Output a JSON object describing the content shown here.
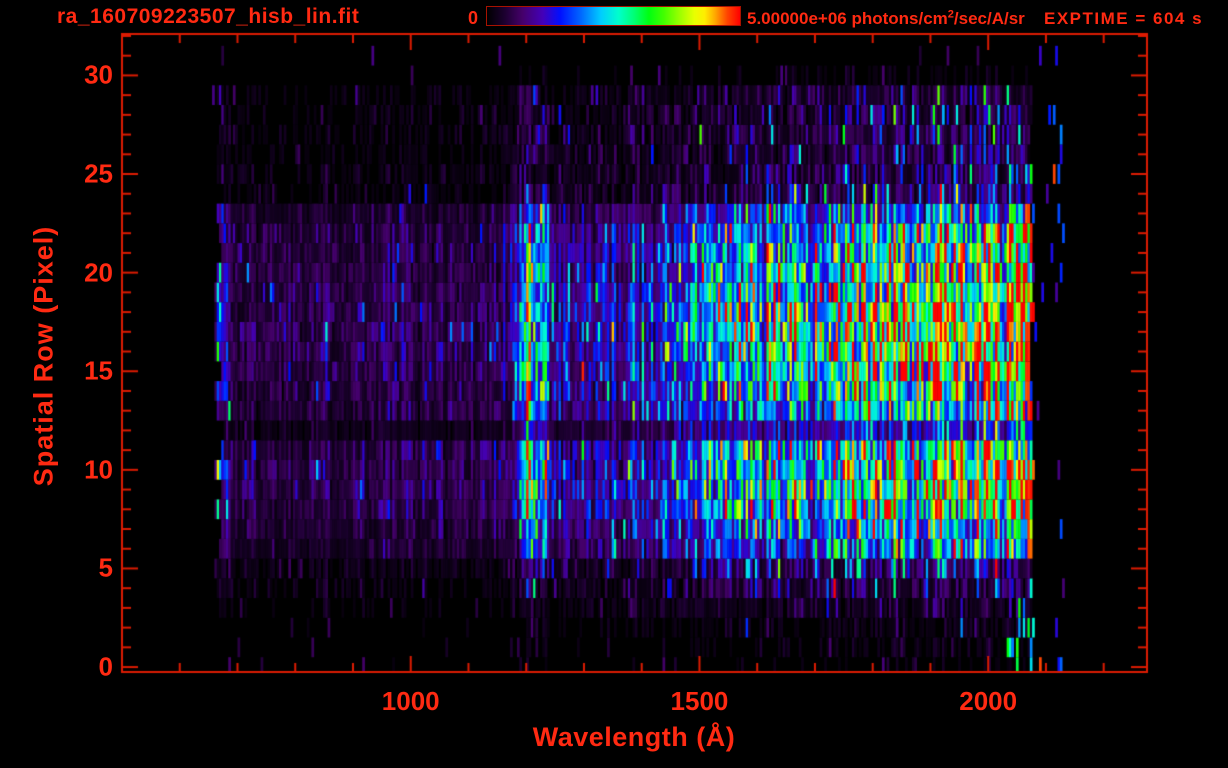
{
  "header": {
    "title": "ra_160709223507_hisb_lin.fit",
    "colorbar": {
      "min_label": "0",
      "max_label_pre": "5.00000e+06 photons/cm",
      "max_label_sup": "2",
      "max_label_post": "/sec/A/sr"
    },
    "exptime_label": "EXPTIME = 604 s"
  },
  "chart_data": {
    "type": "heatmap",
    "title": "ra_160709223507_hisb_lin.fit",
    "xlabel": "Wavelength (Å)",
    "ylabel": "Spatial Row (Pixel)",
    "exptime_s": 604,
    "x_axis": {
      "min": 500,
      "max": 2275,
      "major_ticks": [
        1000,
        1500,
        2000
      ],
      "minor_step": 100,
      "minor_from": 600,
      "minor_to": 2200
    },
    "y_axis": {
      "min": -0.25,
      "max": 32.1,
      "major_ticks": [
        0,
        5,
        10,
        15,
        20,
        25,
        30
      ],
      "minor_step": 1,
      "minor_from": 0,
      "minor_to": 32
    },
    "colorbar": {
      "min": 0,
      "max": 5000000,
      "units": "photons/cm^2/sec/A/sr"
    },
    "accent_color": "#ff2a12",
    "line_color": "#dd1b02",
    "colorbar_border_color": "#a81200",
    "data_lambda_min_A": 660,
    "data_lambda_max_A": 2074,
    "emission_line_center_A": 1213,
    "rows": 32,
    "row_profile": [
      0.012,
      0.02,
      0.03,
      0.06,
      0.1,
      0.16,
      0.38,
      0.48,
      0.6,
      0.65,
      0.66,
      0.6,
      0.26,
      0.5,
      0.58,
      0.66,
      0.72,
      0.74,
      0.72,
      0.66,
      0.62,
      0.58,
      0.52,
      0.4,
      0.13,
      0.11,
      0.1,
      0.1,
      0.09,
      0.08,
      0.015,
      0.0
    ],
    "spectral_profile": [
      [
        500,
        0
      ],
      [
        658,
        0
      ],
      [
        664,
        0.26
      ],
      [
        680,
        0.26
      ],
      [
        690,
        0.11
      ],
      [
        800,
        0.12
      ],
      [
        950,
        0.13
      ],
      [
        1100,
        0.12
      ],
      [
        1150,
        0.13
      ],
      [
        1185,
        0.22
      ],
      [
        1200,
        0.62
      ],
      [
        1213,
        0.72
      ],
      [
        1228,
        0.62
      ],
      [
        1245,
        0.28
      ],
      [
        1320,
        0.21
      ],
      [
        1400,
        0.3
      ],
      [
        1500,
        0.4
      ],
      [
        1600,
        0.52
      ],
      [
        1700,
        0.6
      ],
      [
        1800,
        0.7
      ],
      [
        1870,
        0.78
      ],
      [
        1950,
        0.84
      ],
      [
        2020,
        0.86
      ],
      [
        2060,
        0.88
      ],
      [
        2074,
        0.9
      ],
      [
        2076,
        0
      ],
      [
        2300,
        0
      ]
    ],
    "colormap_stops": [
      [
        0.0,
        "#000000"
      ],
      [
        0.07,
        "#1c0030"
      ],
      [
        0.14,
        "#45006a"
      ],
      [
        0.22,
        "#4400b8"
      ],
      [
        0.29,
        "#0010ff"
      ],
      [
        0.37,
        "#0066ff"
      ],
      [
        0.45,
        "#00ccff"
      ],
      [
        0.52,
        "#00ffcc"
      ],
      [
        0.58,
        "#00ff77"
      ],
      [
        0.64,
        "#00ff11"
      ],
      [
        0.7,
        "#44ff00"
      ],
      [
        0.76,
        "#99ff00"
      ],
      [
        0.82,
        "#e8ff00"
      ],
      [
        0.86,
        "#ffee00"
      ],
      [
        0.9,
        "#ffaa00"
      ],
      [
        0.95,
        "#ff4400"
      ],
      [
        1.0,
        "#ff0000"
      ]
    ],
    "noise": {
      "seed": 1337,
      "sigma_faint": 0.78,
      "sigma_bright": 0.42,
      "gain_min": 0.55,
      "gain_span": 1.1,
      "bin_width_A": 4,
      "scale": 1.2
    }
  }
}
